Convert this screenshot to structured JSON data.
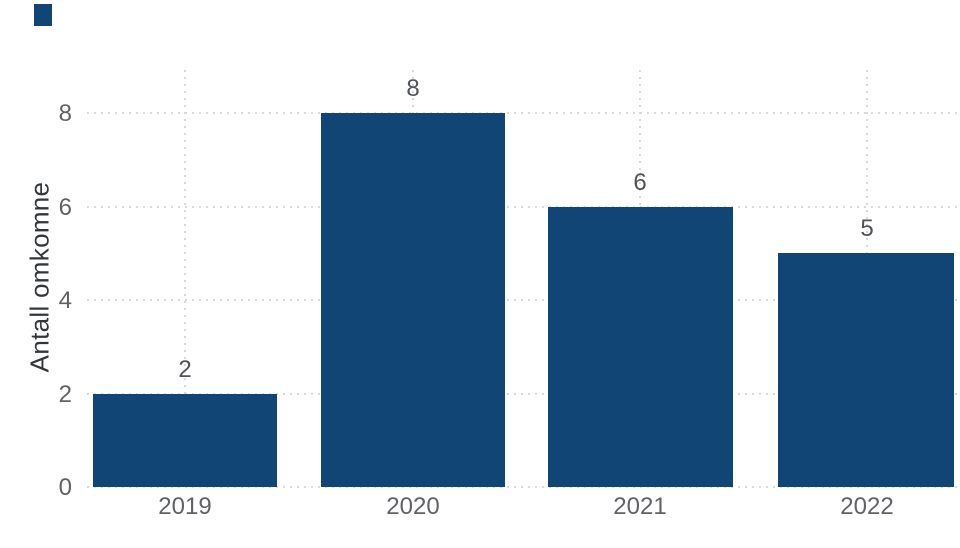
{
  "chart_data": {
    "type": "bar",
    "title": "",
    "xlabel": "",
    "ylabel": "Antall omkomne",
    "categories": [
      "2019",
      "2020",
      "2021",
      "2022"
    ],
    "values": [
      2,
      8,
      6,
      5
    ],
    "data_labels": [
      "2",
      "8",
      "6",
      "5"
    ],
    "y_ticks": [
      8,
      6,
      4,
      2,
      0
    ],
    "ylim": [
      0,
      8.9
    ],
    "grid": "dotted horizontal and vertical gridlines",
    "legend_position": "top-left swatch, no text",
    "colors": {
      "bar": "#114576",
      "grid": "#d9d9d9",
      "tick_label": "#606266",
      "data_label": "#505357",
      "axis_title": "#33363b",
      "background": "#ffffff"
    }
  }
}
